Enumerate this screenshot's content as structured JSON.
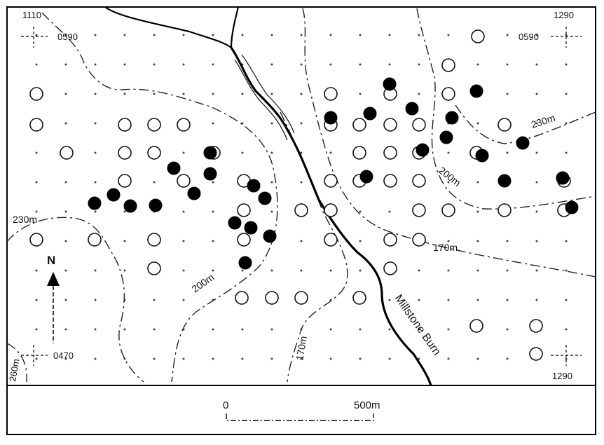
{
  "map": {
    "corner_labels": {
      "top_left_easting": "1110",
      "top_left_northing": "0590",
      "top_right_easting": "1290",
      "top_right_northing": "0590",
      "bottom_left_northing": "0470",
      "bottom_right_easting": "1290"
    },
    "contour_labels": {
      "c230_west": "230m",
      "c230_east": "230m",
      "c200_west": "200m",
      "c200_east": "200m",
      "c170_south": "170m",
      "c170_east": "170m",
      "c260_sw": "260m"
    },
    "river_label": "Millstone Burn",
    "north_label": "N",
    "scale_bar": {
      "start_label": "0",
      "end_label": "500m"
    },
    "colors": {
      "ink": "#000000",
      "paper": "#ffffff"
    }
  }
}
